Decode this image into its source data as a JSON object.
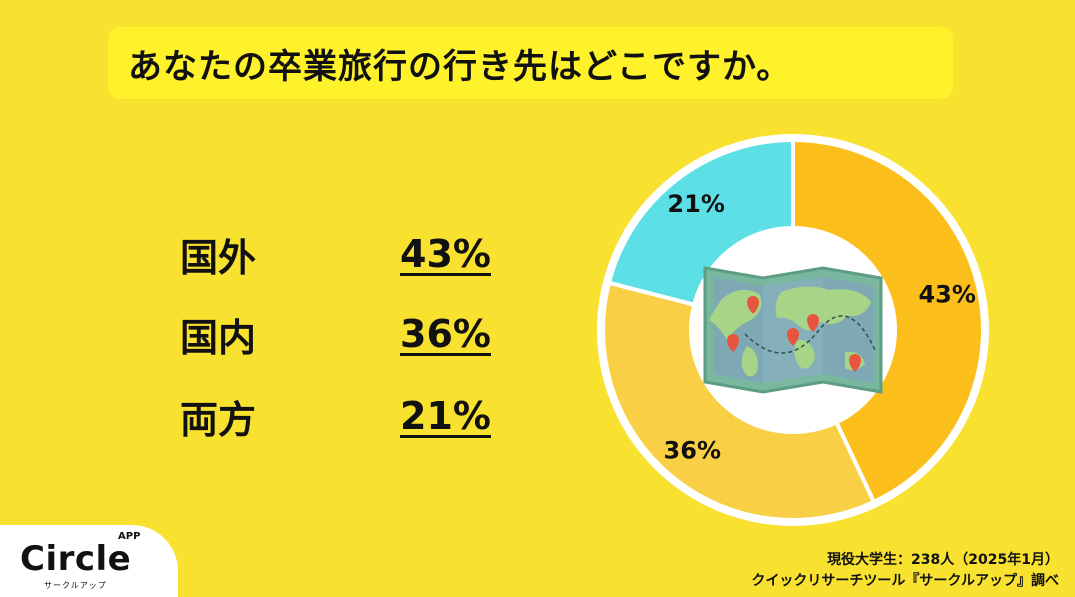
{
  "title": "あなたの卒業旅行の行き先はどこですか。",
  "legend": [
    {
      "label": "国外",
      "value": "43%"
    },
    {
      "label": "国内",
      "value": "36%"
    },
    {
      "label": "両方",
      "value": "21%"
    }
  ],
  "chart_data": {
    "type": "pie",
    "style": "donut",
    "categories": [
      "国外",
      "国内",
      "両方"
    ],
    "values": [
      43,
      36,
      21
    ],
    "data_labels": [
      "43%",
      "36%",
      "21%"
    ],
    "colors": [
      "#fcbe1a",
      "#f9cf45",
      "#5ce0e6"
    ],
    "center_icon": "world-map-icon",
    "legend_placement": "left"
  },
  "logo": {
    "main": "Circle",
    "superscript": "APP",
    "sub": "サークルアップ"
  },
  "source": {
    "line1": "現役大学生：238人（2025年1月）",
    "line2": "クイックリサーチツール『サークルアップ』調べ"
  }
}
